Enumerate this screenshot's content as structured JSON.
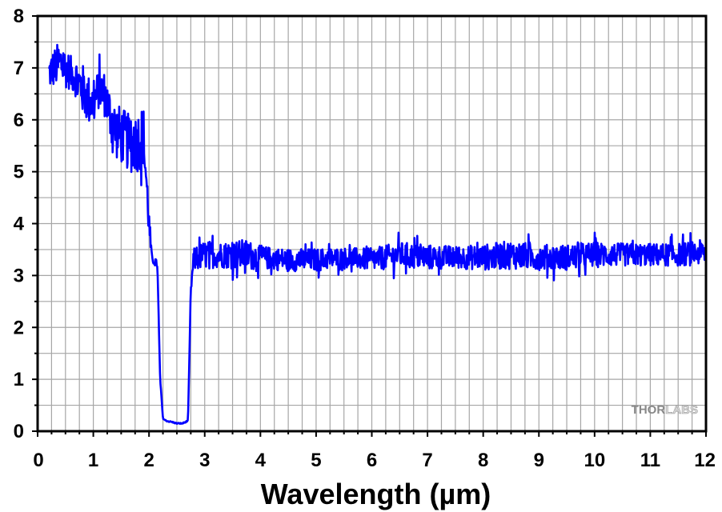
{
  "chart_data": {
    "type": "line",
    "title": "",
    "xlabel": "Wavelength (µm)",
    "ylabel": "",
    "xlim": [
      0,
      12
    ],
    "ylim": [
      0,
      8
    ],
    "x_ticks": [
      "0",
      "1",
      "2",
      "3",
      "4",
      "5",
      "6",
      "7",
      "8",
      "9",
      "10",
      "11",
      "12"
    ],
    "y_ticks": [
      "0",
      "1",
      "2",
      "3",
      "4",
      "5",
      "6",
      "7",
      "8"
    ],
    "grid": true,
    "grid_minor_step_x": 0.25,
    "grid_minor_step_y": 0.5,
    "line_color": "#0000ff",
    "series": [
      {
        "name": "",
        "x": [
          0.2,
          0.3,
          0.4,
          0.5,
          0.6,
          0.7,
          0.8,
          0.9,
          1.0,
          1.1,
          1.2,
          1.3,
          1.4,
          1.5,
          1.6,
          1.7,
          1.8,
          1.9,
          2.0,
          2.05,
          2.1,
          2.15,
          2.2,
          2.25,
          2.3,
          2.4,
          2.5,
          2.6,
          2.7,
          2.75,
          2.8,
          2.9,
          3.0,
          3.25,
          3.5,
          3.75,
          4.0,
          4.5,
          5.0,
          5.5,
          6.0,
          6.5,
          7.0,
          7.5,
          8.0,
          8.5,
          9.0,
          9.5,
          10.0,
          10.5,
          11.0,
          11.5,
          12.0
        ],
        "values": [
          6.9,
          7.0,
          7.1,
          7.0,
          6.9,
          6.8,
          6.6,
          6.4,
          6.3,
          6.6,
          6.5,
          6.1,
          5.8,
          5.7,
          5.6,
          5.5,
          5.6,
          5.7,
          4.0,
          3.3,
          3.3,
          3.2,
          1.0,
          0.25,
          0.2,
          0.18,
          0.15,
          0.15,
          0.2,
          2.7,
          3.3,
          3.35,
          3.4,
          3.4,
          3.4,
          3.4,
          3.35,
          3.3,
          3.3,
          3.35,
          3.3,
          3.4,
          3.35,
          3.35,
          3.35,
          3.4,
          3.35,
          3.35,
          3.4,
          3.4,
          3.4,
          3.4,
          3.45
        ],
        "noise_amplitude": [
          0.6,
          0.7,
          0.8,
          0.7,
          0.6,
          0.7,
          0.9,
          0.9,
          0.8,
          0.7,
          0.8,
          0.9,
          1.0,
          1.0,
          1.0,
          1.0,
          1.1,
          1.1,
          0.6,
          0.2,
          0.15,
          0.1,
          0.05,
          0.02,
          0.02,
          0.02,
          0.02,
          0.02,
          0.02,
          0.1,
          0.4,
          0.45,
          0.5,
          0.45,
          0.5,
          0.55,
          0.4,
          0.4,
          0.4,
          0.35,
          0.4,
          0.45,
          0.45,
          0.4,
          0.45,
          0.5,
          0.45,
          0.45,
          0.45,
          0.4,
          0.4,
          0.4,
          0.45
        ]
      }
    ]
  },
  "watermark": {
    "text_dark": "THOR",
    "text_light": "LABS"
  }
}
